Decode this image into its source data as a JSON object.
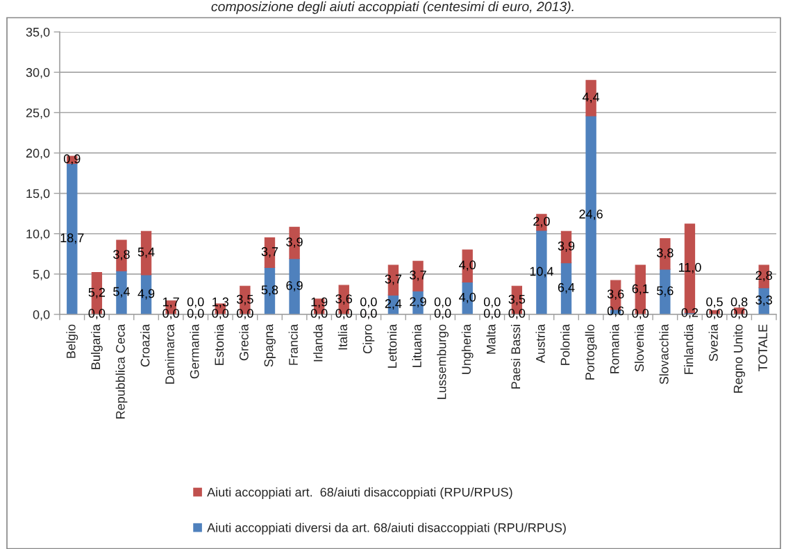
{
  "chart_data": {
    "type": "bar",
    "title": "composizione degli aiuti accoppiati (centesimi di euro, 2013).",
    "categories": [
      "Belgio",
      "Bulgaria",
      "Repubblica Ceca",
      "Croazia",
      "Danimarca",
      "Germania",
      "Estonia",
      "Grecia",
      "Spagna",
      "Francia",
      "Irlanda",
      "Italia",
      "Cipro",
      "Lettonia",
      "Lituania",
      "Lussemburgo",
      "Ungheria",
      "Malta",
      "Paesi Bassi",
      "Austria",
      "Polonia",
      "Portogallo",
      "Romania",
      "Slovenia",
      "Slovacchia",
      "Finlandia",
      "Svezia",
      "Regno Unito",
      "TOTALE"
    ],
    "stacked": true,
    "series": [
      {
        "name": "Aiuti accoppiati diversi da art. 68/aiuti disaccoppiati (RPU/RPUS)",
        "color": "#4f81bd",
        "values": [
          18.7,
          0.0,
          5.4,
          4.9,
          0.0,
          0.0,
          0.0,
          0.0,
          5.8,
          6.9,
          0.0,
          0.0,
          0.0,
          2.4,
          2.9,
          0.0,
          4.0,
          0.0,
          0.0,
          10.4,
          6.4,
          24.6,
          0.6,
          0.0,
          5.6,
          0.2,
          0.0,
          0.0,
          3.3
        ],
        "value_labels": [
          "18,7",
          "0,0",
          "5,4",
          "4,9",
          "0,0",
          "0,0",
          "0,0",
          "0,0",
          "5,8",
          "6,9",
          "0,0",
          "0,0",
          "0,0",
          "2,4",
          "2,9",
          "0,0",
          "4,0",
          "0,0",
          "0,0",
          "10,4",
          "6,4",
          "24,6",
          "0,6",
          "0,0",
          "5,6",
          "0,2",
          "0,0",
          "0,0",
          "3,3"
        ]
      },
      {
        "name": "Aiuti accoppiati art.  68/aiuti disaccoppiati (RPU/RPUS)",
        "color": "#c0504d",
        "values": [
          0.9,
          5.2,
          3.8,
          5.4,
          1.7,
          0.0,
          1.3,
          3.5,
          3.7,
          3.9,
          1.9,
          3.6,
          0.0,
          3.7,
          3.7,
          0.0,
          4.0,
          0.0,
          3.5,
          2.0,
          3.9,
          4.4,
          3.6,
          6.1,
          3.8,
          11.0,
          0.5,
          0.8,
          2.8
        ],
        "value_labels": [
          "0,9",
          "5,2",
          "3,8",
          "5,4",
          "1,7",
          "0,0",
          "1,3",
          "3,5",
          "3,7",
          "3,9",
          "1,9",
          "3,6",
          "0,0",
          "3,7",
          "3,7",
          "0,0",
          "4,0",
          "0,0",
          "3,5",
          "2,0",
          "3,9",
          "4,4",
          "3,6",
          "6,1",
          "3,8",
          "11,0",
          "0,5",
          "0,8",
          "2,8"
        ]
      }
    ],
    "ylim": [
      0,
      35
    ],
    "yticks": [
      {
        "value": 0,
        "label": "0,0"
      },
      {
        "value": 5,
        "label": "5,0"
      },
      {
        "value": 10,
        "label": "10,0"
      },
      {
        "value": 15,
        "label": "15,0"
      },
      {
        "value": 20,
        "label": "20,0"
      },
      {
        "value": 25,
        "label": "25,0"
      },
      {
        "value": 30,
        "label": "30,0"
      },
      {
        "value": 35,
        "label": "35,0"
      }
    ],
    "grid": "y",
    "legend": "bottom"
  }
}
